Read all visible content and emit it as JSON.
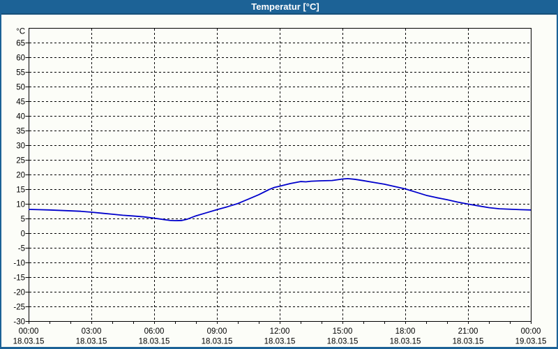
{
  "window": {
    "title": "Temperatur [°C]",
    "titlebar_color": "#1c6296",
    "titlebar_edge_color": "#165079",
    "border_color": "#1c6296",
    "background_color": "#fcfdf8",
    "title_text_color": "#ffffff"
  },
  "chart_data": {
    "type": "line",
    "title": "Temperatur [°C]",
    "unit_label": "°C",
    "grid": {
      "dashed": true,
      "color": "#000000",
      "axis_color": "#000000",
      "text_color": "#000000"
    },
    "y_axis": {
      "min": -30,
      "max": 70,
      "label_step": 5,
      "tick_labels": [
        "65",
        "60",
        "55",
        "50",
        "45",
        "40",
        "35",
        "30",
        "25",
        "20",
        "15",
        "10",
        "5",
        "0",
        "-5",
        "-10",
        "-15",
        "-20",
        "-25",
        "-30"
      ],
      "gridline_values": [
        65,
        60,
        55,
        50,
        45,
        40,
        35,
        30,
        25,
        20,
        15,
        10,
        5,
        0,
        -5,
        -10,
        -15,
        -20,
        -25
      ]
    },
    "x_axis": {
      "hours_min": 0,
      "hours_max": 24,
      "major_step_hours": 3,
      "minor_step_hours": 1,
      "gridline_hours": [
        3,
        6,
        9,
        12,
        15,
        18,
        21
      ],
      "tick_labels": [
        {
          "hour": 0,
          "time": "00:00",
          "date": "18.03.15"
        },
        {
          "hour": 3,
          "time": "03:00",
          "date": "18.03.15"
        },
        {
          "hour": 6,
          "time": "06:00",
          "date": "18.03.15"
        },
        {
          "hour": 9,
          "time": "09:00",
          "date": "18.03.15"
        },
        {
          "hour": 12,
          "time": "12:00",
          "date": "18.03.15"
        },
        {
          "hour": 15,
          "time": "15:00",
          "date": "18.03.15"
        },
        {
          "hour": 18,
          "time": "18:00",
          "date": "18.03.15"
        },
        {
          "hour": 21,
          "time": "21:00",
          "date": "18.03.15"
        },
        {
          "hour": 24,
          "time": "00:00",
          "date": "19.03.15"
        }
      ]
    },
    "series": [
      {
        "name": "Temperatur",
        "color": "#0000cc",
        "points": [
          [
            0.0,
            8.1
          ],
          [
            0.5,
            8.0
          ],
          [
            1.0,
            7.9
          ],
          [
            1.5,
            7.75
          ],
          [
            2.0,
            7.6
          ],
          [
            2.5,
            7.45
          ],
          [
            3.0,
            7.15
          ],
          [
            3.5,
            6.8
          ],
          [
            4.0,
            6.45
          ],
          [
            4.5,
            6.1
          ],
          [
            5.0,
            5.85
          ],
          [
            5.5,
            5.55
          ],
          [
            6.0,
            5.1
          ],
          [
            6.5,
            4.6
          ],
          [
            6.75,
            4.35
          ],
          [
            7.0,
            4.25
          ],
          [
            7.3,
            4.3
          ],
          [
            7.6,
            4.8
          ],
          [
            8.0,
            5.9
          ],
          [
            8.5,
            6.95
          ],
          [
            9.0,
            8.0
          ],
          [
            9.5,
            9.0
          ],
          [
            10.0,
            10.1
          ],
          [
            10.5,
            11.6
          ],
          [
            11.0,
            13.1
          ],
          [
            11.5,
            14.9
          ],
          [
            11.75,
            15.6
          ],
          [
            12.0,
            16.0
          ],
          [
            12.5,
            16.9
          ],
          [
            13.0,
            17.6
          ],
          [
            13.25,
            17.5
          ],
          [
            13.5,
            17.7
          ],
          [
            14.0,
            17.85
          ],
          [
            14.5,
            17.95
          ],
          [
            15.0,
            18.45
          ],
          [
            15.25,
            18.6
          ],
          [
            15.6,
            18.35
          ],
          [
            16.0,
            17.9
          ],
          [
            16.5,
            17.3
          ],
          [
            17.0,
            16.7
          ],
          [
            17.5,
            15.9
          ],
          [
            18.0,
            15.1
          ],
          [
            18.5,
            14.0
          ],
          [
            19.0,
            12.9
          ],
          [
            19.5,
            12.1
          ],
          [
            20.0,
            11.4
          ],
          [
            20.5,
            10.6
          ],
          [
            21.0,
            9.9
          ],
          [
            21.5,
            9.3
          ],
          [
            22.0,
            8.7
          ],
          [
            22.5,
            8.3
          ],
          [
            23.0,
            8.15
          ],
          [
            23.5,
            8.0
          ],
          [
            24.0,
            7.9
          ]
        ]
      }
    ]
  }
}
